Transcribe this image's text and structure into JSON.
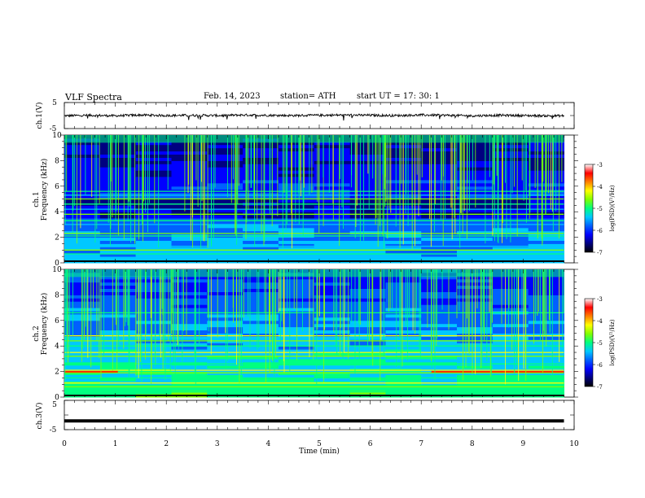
{
  "header": {
    "title": "VLF  Spectra",
    "date": "Feb. 14, 2023",
    "station": "station= ATH",
    "start_ut": "start  UT  =    17: 30: 1"
  },
  "colors": {
    "waveform": "#000000",
    "colorbar": [
      "#000000",
      "#000080",
      "#0000ff",
      "#0060ff",
      "#00c8ff",
      "#00ff80",
      "#80ff00",
      "#ffff00",
      "#ff8000",
      "#ff0000",
      "#ffffff"
    ]
  },
  "chart_data": [
    {
      "type": "line",
      "panel": "ch1-waveform",
      "ylabel": "ch.1(V)",
      "yticks": [
        "5",
        "-5"
      ],
      "ylim": [
        -5,
        5
      ],
      "xlim": [
        0,
        10
      ],
      "x": [
        0,
        0.5,
        1,
        1.5,
        2,
        2.5,
        3,
        3.5,
        4,
        4.5,
        5,
        5.5,
        6,
        6.5,
        7,
        7.5,
        8,
        8.5,
        9,
        9.5,
        9.8
      ],
      "y": [
        -0.1,
        0.1,
        -0.1,
        0.2,
        0.0,
        0.1,
        0.0,
        0.2,
        0.1,
        0.0,
        0.1,
        0.2,
        0.1,
        0.0,
        0.2,
        0.1,
        -0.1,
        0.1,
        0.0,
        -0.1,
        -0.1
      ]
    },
    {
      "type": "heatmap",
      "panel": "ch1-spectrogram",
      "ylabel": "Frequency  (kHz)",
      "channel_label": "ch.1",
      "yticks": [
        "10",
        "8",
        "6",
        "4",
        "2",
        "0"
      ],
      "ylim": [
        0,
        10
      ],
      "xlim": [
        0,
        9.8
      ],
      "lines_khz": [
        0.4,
        0.7,
        1.0,
        1.3,
        2.1,
        2.3,
        3.0,
        3.3,
        3.8,
        4.2,
        4.6,
        5.0,
        5.3,
        5.6
      ],
      "colorbar": {
        "label": "log(PSD)(V²/Hz)",
        "ticks": [
          "-3",
          "-4",
          "-5",
          "-6",
          "-7"
        ],
        "range": [
          -7,
          -3
        ]
      }
    },
    {
      "type": "heatmap",
      "panel": "ch2-spectrogram",
      "ylabel": "Frequency  (kHz)",
      "channel_label": "ch.2",
      "yticks": [
        "10",
        "8",
        "6",
        "4",
        "2",
        "0"
      ],
      "ylim": [
        0,
        10
      ],
      "xlim": [
        0,
        9.8
      ],
      "lines_khz": [
        0.4,
        0.8,
        1.1,
        1.5,
        1.9,
        2.1,
        2.6,
        3.2,
        3.5,
        4.0,
        4.4,
        4.8,
        6.6
      ],
      "colorbar": {
        "label": "log(PSD)(V²/Hz)",
        "ticks": [
          "-3",
          "-4",
          "-5",
          "-6",
          "-7"
        ],
        "range": [
          -7,
          -3
        ]
      }
    },
    {
      "type": "line",
      "panel": "ch3-waveform",
      "ylabel": "ch.3(V)",
      "yticks": [
        "5",
        "-5"
      ],
      "ylim": [
        -5,
        5
      ],
      "xlim": [
        0,
        10
      ],
      "x": [
        0,
        9.8
      ],
      "y": [
        -2,
        -2
      ]
    }
  ],
  "x_axis": {
    "label": "Time  (min)",
    "ticks": [
      "0",
      "1",
      "2",
      "3",
      "4",
      "5",
      "6",
      "7",
      "8",
      "9",
      "10"
    ],
    "range": [
      0,
      10
    ]
  }
}
